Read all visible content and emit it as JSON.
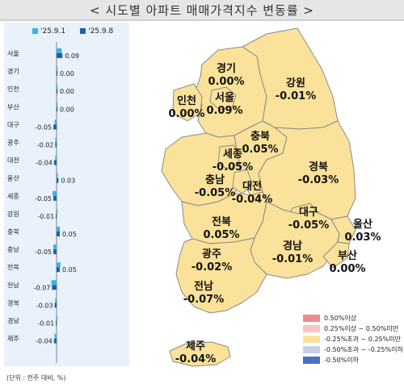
{
  "title": "< 시도별 아파트 매매가격지수 변동률 >",
  "chart_data": {
    "type": "bar",
    "orientation": "horizontal",
    "legend_position": "top",
    "categories": [
      "서울",
      "경기",
      "인천",
      "부산",
      "대구",
      "광주",
      "대전",
      "울산",
      "세종",
      "강원",
      "충북",
      "충남",
      "전북",
      "전남",
      "경북",
      "경남",
      "제주"
    ],
    "series": [
      {
        "name": "'25.9.1",
        "color": "#33b5e5",
        "values": [
          0.08,
          0.0,
          0.0,
          0.0,
          -0.03,
          -0.02,
          -0.02,
          0.02,
          -0.06,
          0.0,
          0.05,
          -0.05,
          0.06,
          -0.08,
          -0.02,
          0.0,
          -0.03
        ]
      },
      {
        "name": "'25.9.8",
        "color": "#1f5fad",
        "values": [
          0.09,
          0.0,
          0.0,
          0.0,
          -0.05,
          -0.02,
          -0.04,
          0.03,
          -0.05,
          -0.01,
          0.05,
          -0.05,
          0.05,
          -0.07,
          -0.03,
          -0.01,
          -0.04
        ]
      }
    ],
    "value_labels": [
      "0.09",
      "0.00",
      "0.00",
      "0.00",
      "-0.05",
      "-0.02",
      "-0.04",
      "0.03",
      "-0.05",
      "-0.01",
      "0.05",
      "-0.05",
      "0.05",
      "-0.07",
      "-0.03",
      "-0.01",
      "-0.04"
    ],
    "unit_note": "(단위 : 전주 대비, %)"
  },
  "map": {
    "regions": [
      {
        "name": "경기",
        "value": "0.00%"
      },
      {
        "name": "서울",
        "value": "0.09%"
      },
      {
        "name": "인천",
        "value": "0.00%"
      },
      {
        "name": "강원",
        "value": "-0.01%"
      },
      {
        "name": "충북",
        "value": "0.05%"
      },
      {
        "name": "세종",
        "value": "-0.05%"
      },
      {
        "name": "충남",
        "value": "-0.05%"
      },
      {
        "name": "대전",
        "value": "-0.04%"
      },
      {
        "name": "경북",
        "value": "-0.03%"
      },
      {
        "name": "전북",
        "value": "0.05%"
      },
      {
        "name": "대구",
        "value": "-0.05%"
      },
      {
        "name": "울산",
        "value": "0.03%"
      },
      {
        "name": "광주",
        "value": "-0.02%"
      },
      {
        "name": "경남",
        "value": "-0.01%"
      },
      {
        "name": "부산",
        "value": "0.00%"
      },
      {
        "name": "전남",
        "value": "-0.07%"
      },
      {
        "name": "제주",
        "value": "-0.04%"
      }
    ],
    "fill_color": "#fbe29a",
    "border_color": "#8a8a8a"
  },
  "map_legend": [
    {
      "label": "0.50%이상",
      "color": "#ee8c8c"
    },
    {
      "label": "0.25%이상 ~ 0.50%미만",
      "color": "#f9c4c4"
    },
    {
      "label": "-0.25%초과 ~ 0.25%미만",
      "color": "#fbe29a"
    },
    {
      "label": "-0.50%초과 ~ -0.25%이하",
      "color": "#c6d0ec"
    },
    {
      "label": "-0.50%이하",
      "color": "#4a72c4"
    }
  ]
}
